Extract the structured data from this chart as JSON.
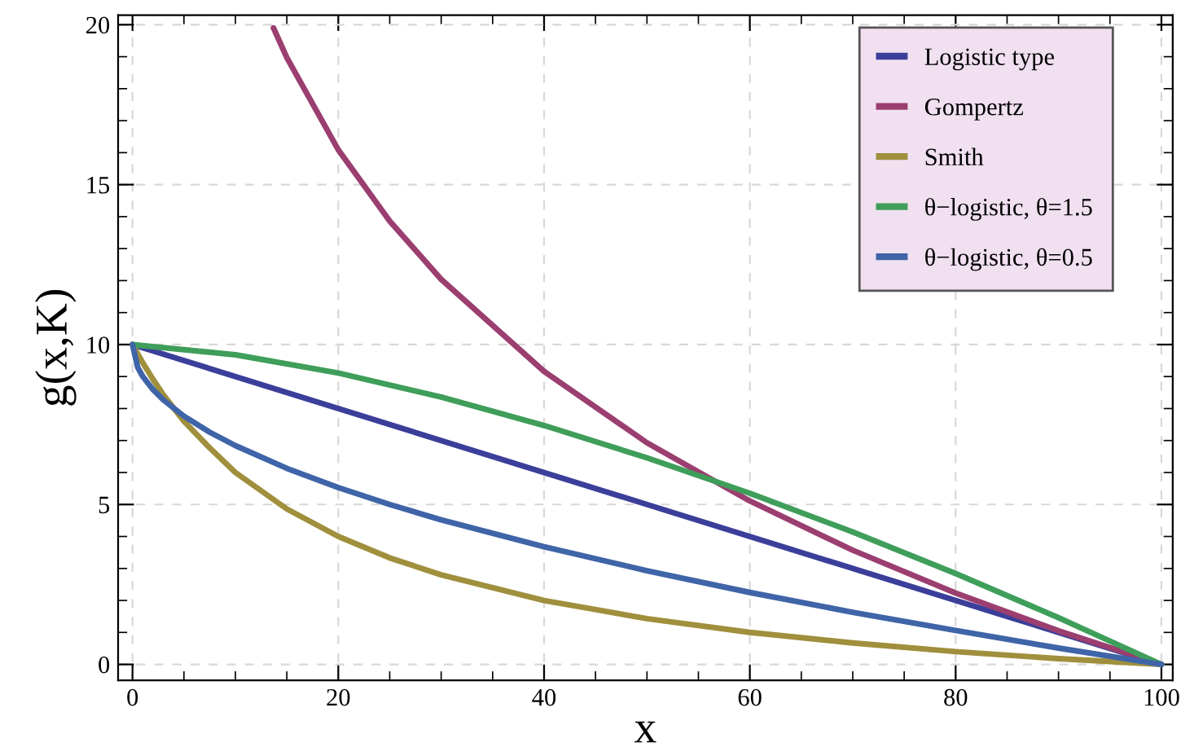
{
  "chart_data": {
    "type": "line",
    "xlabel": "x",
    "ylabel": "g(x,K)",
    "xlim": [
      -1.4,
      101.1
    ],
    "ylim": [
      -0.5,
      20.3
    ],
    "xticks": [
      0,
      20,
      40,
      60,
      80,
      100
    ],
    "yticks": [
      0,
      5,
      10,
      15,
      20
    ],
    "grid": true,
    "legend": "top right",
    "marker": "none",
    "line_style": "solid",
    "series": [
      {
        "name": "Logistic type",
        "color": "#3b3f9a",
        "x": [
          0,
          50,
          100
        ],
        "values": [
          10,
          5,
          0
        ]
      },
      {
        "name": "Gompertz",
        "color": "#9b3e70",
        "x": [
          13.7,
          15,
          20,
          25,
          30,
          40,
          50,
          60,
          70,
          80,
          90,
          100
        ],
        "values": [
          19.9,
          18.97,
          16.09,
          13.86,
          12.04,
          9.16,
          6.93,
          5.11,
          3.57,
          2.23,
          1.05,
          0
        ]
      },
      {
        "name": "Smith",
        "color": "#a08f3c",
        "x": [
          0,
          1,
          2,
          3,
          5,
          7.5,
          10,
          15,
          20,
          25,
          30,
          40,
          50,
          60,
          70,
          80,
          90,
          100
        ],
        "values": [
          10,
          9.43,
          8.91,
          8.43,
          7.6,
          6.77,
          6.0,
          4.86,
          4.0,
          3.33,
          2.8,
          2.0,
          1.43,
          1.0,
          0.67,
          0.4,
          0.18,
          0
        ]
      },
      {
        "name": "θ−logistic, θ=1.5",
        "color": "#3f9e5a",
        "x": [
          0,
          10,
          20,
          30,
          40,
          50,
          60,
          70,
          80,
          90,
          100
        ],
        "values": [
          10,
          9.68,
          9.11,
          8.36,
          7.47,
          6.46,
          5.35,
          4.14,
          2.84,
          1.46,
          0
        ]
      },
      {
        "name": "θ−logistic, θ=0.5",
        "color": "#3f64a8",
        "x": [
          0,
          0.5,
          1,
          2,
          3,
          5,
          7.5,
          10,
          15,
          20,
          25,
          30,
          40,
          50,
          60,
          70,
          80,
          90,
          100
        ],
        "values": [
          10,
          9.29,
          9.0,
          8.59,
          8.27,
          7.76,
          7.26,
          6.84,
          6.13,
          5.53,
          5.0,
          4.52,
          3.68,
          2.93,
          2.25,
          1.63,
          1.06,
          0.51,
          0
        ]
      }
    ]
  }
}
